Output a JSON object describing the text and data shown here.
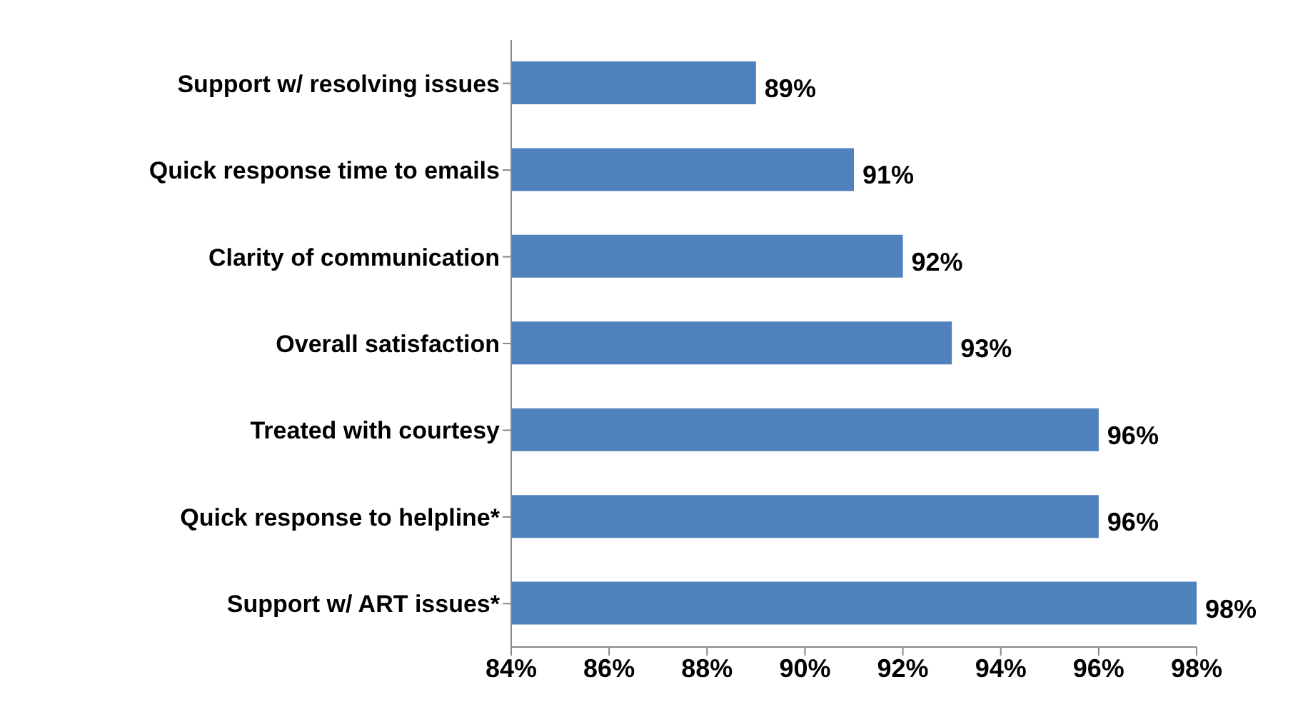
{
  "chart_data": {
    "type": "bar",
    "orientation": "horizontal",
    "categories": [
      "Support w/ resolving issues",
      "Quick response time to emails",
      "Clarity of communication",
      "Overall satisfaction",
      "Treated with courtesy",
      "Quick response to helpline*",
      "Support w/ ART issues*"
    ],
    "values": [
      89,
      91,
      92,
      93,
      96,
      96,
      98
    ],
    "value_labels": [
      "89%",
      "91%",
      "92%",
      "93%",
      "96%",
      "96%",
      "98%"
    ],
    "color": "#4f81bd",
    "xlim": [
      84,
      98
    ],
    "xticks": [
      {
        "value": 84,
        "label": "84%"
      },
      {
        "value": 86,
        "label": "86%"
      },
      {
        "value": 88,
        "label": "88%"
      },
      {
        "value": 90,
        "label": "90%"
      },
      {
        "value": 92,
        "label": "92%"
      },
      {
        "value": 94,
        "label": "94%"
      },
      {
        "value": 96,
        "label": "96%"
      },
      {
        "value": 98,
        "label": "98%"
      }
    ],
    "grid": false,
    "legend": false
  }
}
